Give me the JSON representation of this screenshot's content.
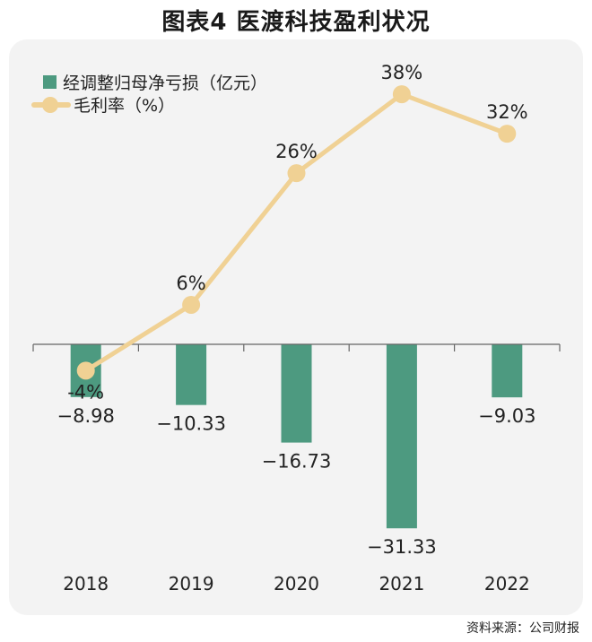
{
  "title": "图表4  医渡科技盈利状况",
  "source": "资料来源：公司财报",
  "colors": {
    "bar": "#4d9a80",
    "line": "#f0d194",
    "panel": "#f3f3f3",
    "axis": "#666666"
  },
  "chart_data": {
    "type": "bar+line",
    "title": "医渡科技盈利状况",
    "categories": [
      "2018",
      "2019",
      "2020",
      "2021",
      "2022"
    ],
    "series": [
      {
        "name": "经调整归母净亏损（亿元）",
        "type": "bar",
        "values": [
          -8.98,
          -10.33,
          -16.73,
          -31.33,
          -9.03
        ],
        "labels": [
          "−8.98",
          "−10.33",
          "−16.73",
          "−31.33",
          "−9.03"
        ]
      },
      {
        "name": "毛利率（%）",
        "type": "line",
        "values": [
          -4,
          6,
          26,
          38,
          32
        ],
        "labels": [
          "-4%",
          "6%",
          "26%",
          "38%",
          "32%"
        ]
      }
    ],
    "legend_position": "top-left"
  }
}
